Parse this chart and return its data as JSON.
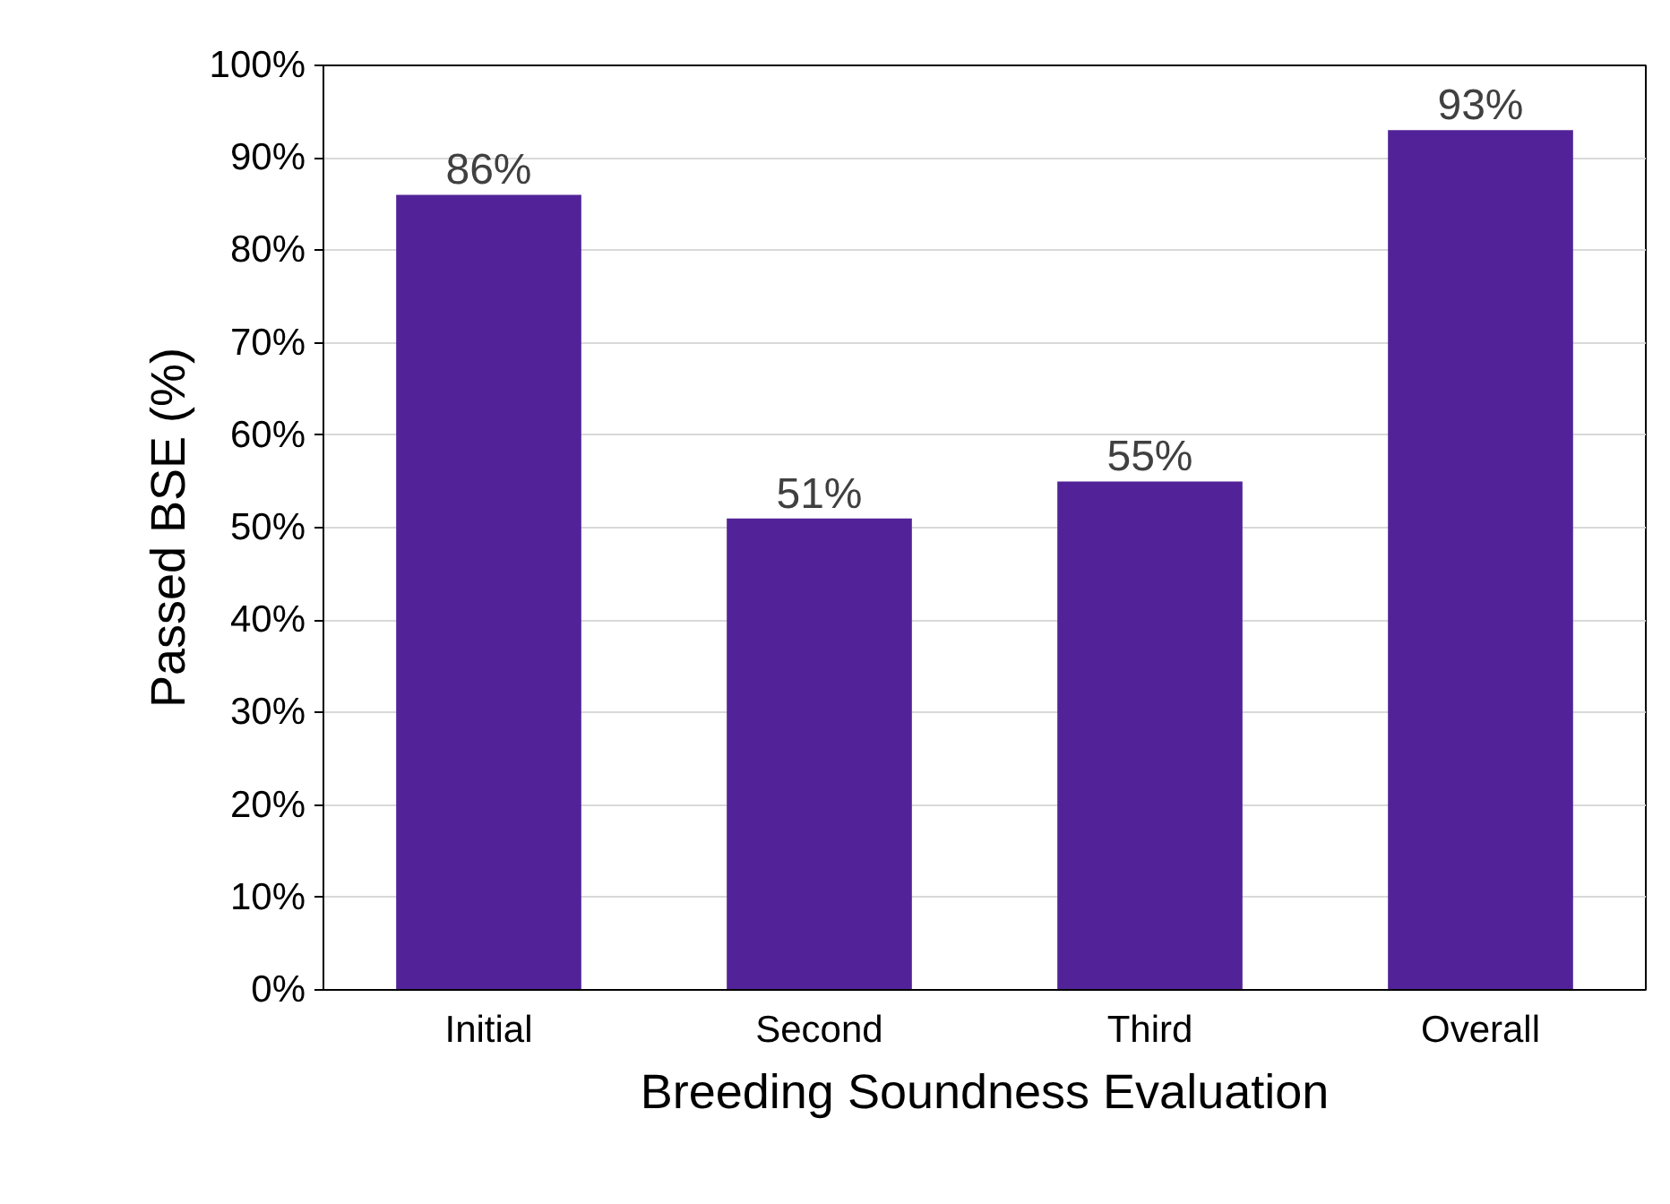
{
  "chart_data": {
    "type": "bar",
    "xlabel": "Breeding Soundness Evaluation",
    "ylabel": "Passed BSE (%)",
    "categories": [
      "Initial",
      "Second",
      "Third",
      "Overall"
    ],
    "values": [
      86,
      51,
      55,
      93
    ],
    "color": "#522398",
    "value_labels": [
      "86%",
      "51%",
      "55%",
      "93%"
    ],
    "ylim": [
      0,
      100
    ],
    "yticks": [
      {
        "value": 0,
        "label": "0%"
      },
      {
        "value": 10,
        "label": "10%"
      },
      {
        "value": 20,
        "label": "20%"
      },
      {
        "value": 30,
        "label": "30%"
      },
      {
        "value": 40,
        "label": "40%"
      },
      {
        "value": 50,
        "label": "50%"
      },
      {
        "value": 60,
        "label": "60%"
      },
      {
        "value": 70,
        "label": "70%"
      },
      {
        "value": 80,
        "label": "80%"
      },
      {
        "value": 90,
        "label": "90%"
      },
      {
        "value": 100,
        "label": "100%"
      }
    ],
    "grid": "y"
  }
}
